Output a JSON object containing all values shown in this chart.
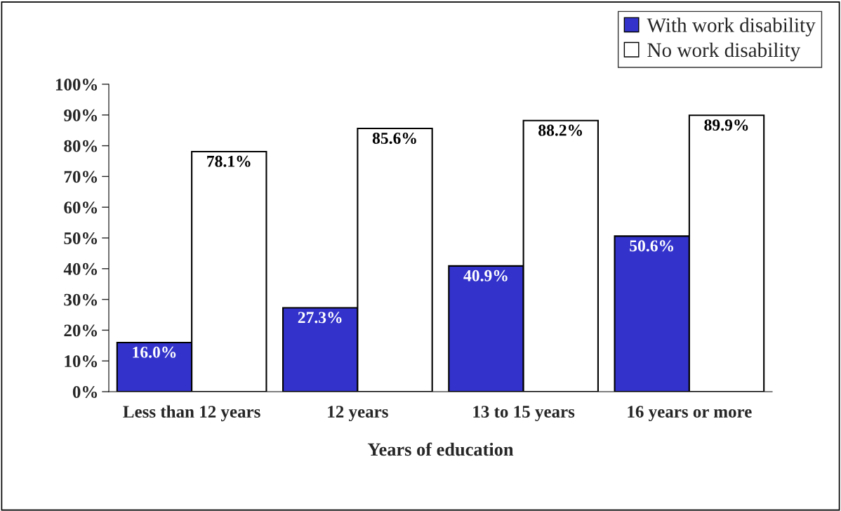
{
  "chart_data": {
    "type": "bar",
    "xlabel": "Years of education",
    "categories": [
      "Less than 12 years",
      "12 years",
      "13 to 15 years",
      "16 years or more"
    ],
    "series": [
      {
        "name": "With work disability",
        "color": "#3333cc",
        "values": [
          16.0,
          27.3,
          40.9,
          50.6
        ],
        "value_labels": [
          "16.0%",
          "27.3%",
          "40.9%",
          "50.6%"
        ]
      },
      {
        "name": "No work disability",
        "color": "#ffffff",
        "values": [
          78.1,
          85.6,
          88.2,
          89.9
        ],
        "value_labels": [
          "78.1%",
          "85.6%",
          "88.2%",
          "89.9%"
        ]
      }
    ],
    "ylim": [
      0,
      100
    ],
    "yticks": [
      {
        "value": 0,
        "label": "0%"
      },
      {
        "value": 10,
        "label": "10%"
      },
      {
        "value": 20,
        "label": "20%"
      },
      {
        "value": 30,
        "label": "30%"
      },
      {
        "value": 40,
        "label": "40%"
      },
      {
        "value": 50,
        "label": "50%"
      },
      {
        "value": 60,
        "label": "60%"
      },
      {
        "value": 70,
        "label": "70%"
      },
      {
        "value": 80,
        "label": "80%"
      },
      {
        "value": 90,
        "label": "90%"
      },
      {
        "value": 100,
        "label": "100%"
      }
    ],
    "grid": false,
    "legend": "top right"
  }
}
